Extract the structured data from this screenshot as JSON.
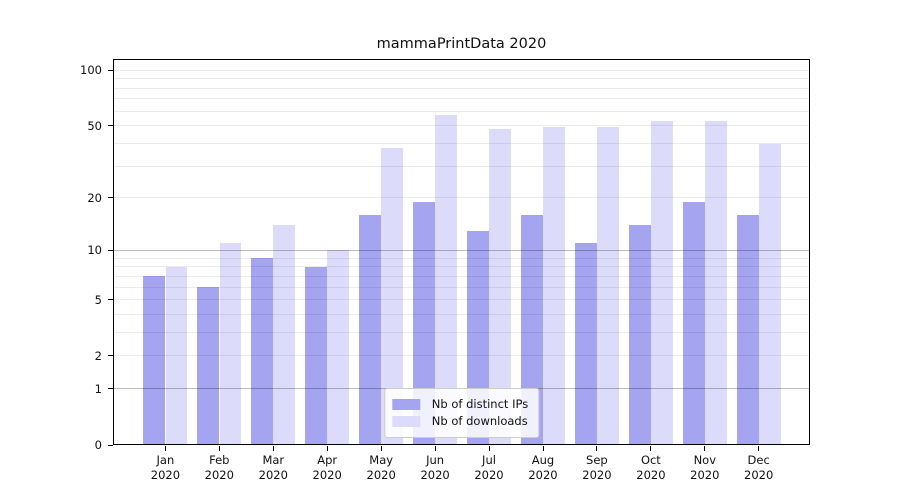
{
  "chart_data": {
    "type": "bar",
    "title": "mammaPrintData 2020",
    "categories": [
      "Jan 2020",
      "Feb 2020",
      "Mar 2020",
      "Apr 2020",
      "May 2020",
      "Jun 2020",
      "Jul 2020",
      "Aug 2020",
      "Sep 2020",
      "Oct 2020",
      "Nov 2020",
      "Dec 2020"
    ],
    "series": [
      {
        "name": "Nb of distinct IPs",
        "color": "#a4a4f0",
        "values": [
          7,
          6,
          9,
          8,
          16,
          19,
          13,
          16,
          11,
          14,
          19,
          16
        ]
      },
      {
        "name": "Nb of downloads",
        "color": "#dcdcfa",
        "values": [
          8,
          11,
          14,
          10,
          38,
          57,
          48,
          49,
          49,
          53,
          53,
          40
        ]
      }
    ],
    "xlabel": "",
    "ylabel": "",
    "y_scale": "log10(1+x)",
    "y_ticks": [
      0,
      1,
      2,
      5,
      10,
      20,
      50,
      100
    ],
    "ylim": [
      0,
      115
    ],
    "grid": "both",
    "grid_values": {
      "major": [
        1,
        10
      ],
      "minor": [
        2,
        3,
        4,
        5,
        6,
        7,
        8,
        9,
        20,
        30,
        40,
        50,
        60,
        70,
        80,
        90,
        100
      ]
    },
    "grid_color_major": "rgba(0,0,0,0.26)",
    "grid_color_minor": "rgba(0,0,0,0.08)",
    "legend_position": "lower center",
    "background_color": "#ffffff"
  }
}
